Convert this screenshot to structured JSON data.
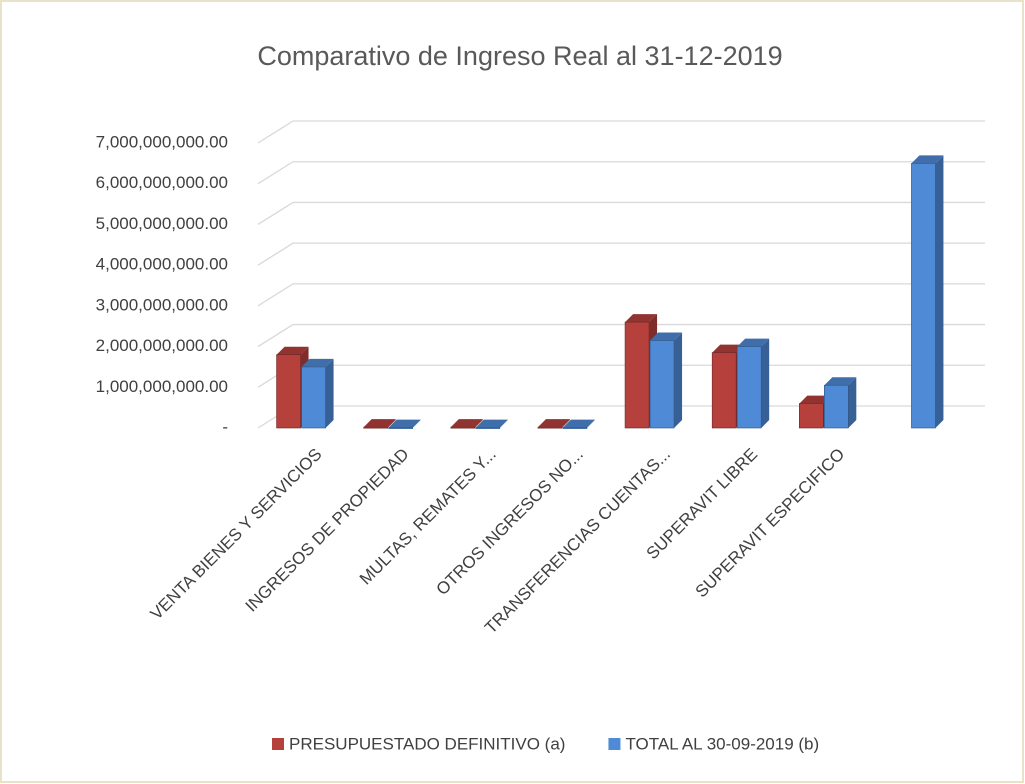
{
  "chart_data": {
    "type": "bar3d",
    "title": "Comparativo de Ingreso  Real al 31-12-2019",
    "categories": [
      "VENTA BIENES Y SERVICIOS",
      "INGRESOS DE PROPIEDAD",
      "MULTAS, REMATES Y...",
      "OTROS INGRESOS NO...",
      "TRANSFERENCIAS CUENTAS...",
      "SUPERAVIT LIBRE",
      "SUPERAVIT ESPECIFICO",
      null
    ],
    "series": [
      {
        "name": "PRESUPUESTADO DEFINITIVO (a)",
        "color": "#b5403c",
        "values": [
          1800000000,
          20000000,
          20000000,
          20000000,
          2600000000,
          1850000000,
          600000000,
          null
        ]
      },
      {
        "name": "TOTAL AL 30-09-2019 (b)",
        "color": "#4f8ad6",
        "values": [
          1500000000,
          10000000,
          10000000,
          10000000,
          2150000000,
          2000000000,
          1050000000,
          6500000000
        ]
      }
    ],
    "ylim": [
      0,
      7000000000
    ],
    "yticks": [
      {
        "value": 0,
        "label": "-"
      },
      {
        "value": 1000000000,
        "label": "1,000,000,000.00"
      },
      {
        "value": 2000000000,
        "label": "2,000,000,000.00"
      },
      {
        "value": 3000000000,
        "label": "3,000,000,000.00"
      },
      {
        "value": 4000000000,
        "label": "4,000,000,000.00"
      },
      {
        "value": 5000000000,
        "label": "5,000,000,000.00"
      },
      {
        "value": 6000000000,
        "label": "6,000,000,000.00"
      },
      {
        "value": 7000000000,
        "label": "7,000,000,000.00"
      }
    ],
    "grid": true,
    "legend": "bottom"
  }
}
